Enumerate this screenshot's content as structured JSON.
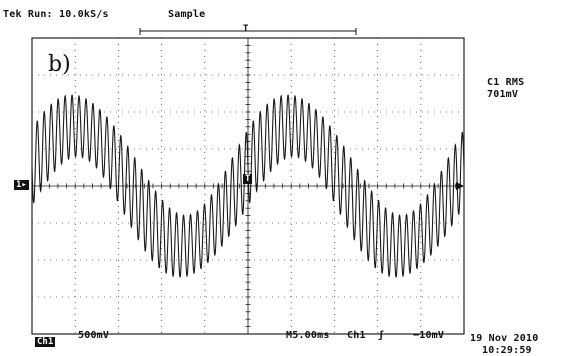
{
  "header": {
    "status": "Tek Run: 10.0kS/s",
    "mode": "Sample",
    "trigger_marker": "T"
  },
  "panel_label": "b)",
  "measurement": {
    "name": "C1 RMS",
    "value": "701mV"
  },
  "markers": {
    "channel_ground": "1",
    "trigger_point": "T"
  },
  "footer": {
    "channel": "Ch1",
    "volts_per_div": "500mV",
    "timebase": "M5.00ms",
    "trigger_source": "Ch1",
    "trigger_slope": "ʃ",
    "trigger_level": "−10mV",
    "date": "19 Nov 2010",
    "time": "10:29:59"
  },
  "colors": {
    "trace": "#1a1a1a",
    "grid": "#555555",
    "background": "#ffffff"
  }
}
